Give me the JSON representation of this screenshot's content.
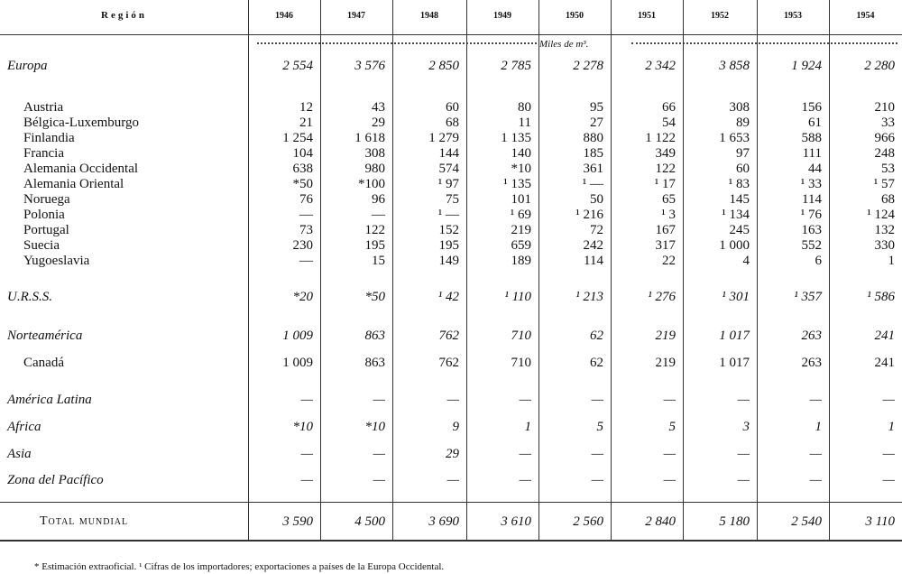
{
  "header": {
    "region": "Región",
    "years": [
      "1946",
      "1947",
      "1948",
      "1949",
      "1950",
      "1951",
      "1952",
      "1953",
      "1954"
    ]
  },
  "unit": "Miles de m³.",
  "rows": [
    {
      "label": "Europa",
      "values": [
        "2 554",
        "3 576",
        "2 850",
        "2 785",
        "2 278",
        "2 342",
        "3 858",
        "1 924",
        "2 280"
      ]
    },
    {
      "label": "Austria",
      "values": [
        "12",
        "43",
        "60",
        "80",
        "95",
        "66",
        "308",
        "156",
        "210"
      ]
    },
    {
      "label": "Bélgica-Luxemburgo",
      "values": [
        "21",
        "29",
        "68",
        "11",
        "27",
        "54",
        "89",
        "61",
        "33"
      ]
    },
    {
      "label": "Finlandia",
      "values": [
        "1 254",
        "1 618",
        "1 279",
        "1 135",
        "880",
        "1 122",
        "1 653",
        "588",
        "966"
      ]
    },
    {
      "label": "Francia",
      "values": [
        "104",
        "308",
        "144",
        "140",
        "185",
        "349",
        "97",
        "111",
        "248"
      ]
    },
    {
      "label": "Alemania Occidental",
      "values": [
        "638",
        "980",
        "574",
        "*10",
        "361",
        "122",
        "60",
        "44",
        "53"
      ]
    },
    {
      "label": "Alemania Oriental",
      "values": [
        "*50",
        "*100",
        "¹ 97",
        "¹ 135",
        "¹ —",
        "¹ 17",
        "¹ 83",
        "¹ 33",
        "¹ 57"
      ]
    },
    {
      "label": "Noruega",
      "values": [
        "76",
        "96",
        "75",
        "101",
        "50",
        "65",
        "145",
        "114",
        "68"
      ]
    },
    {
      "label": "Polonia",
      "values": [
        "—",
        "—",
        "¹ —",
        "¹ 69",
        "¹ 216",
        "¹ 3",
        "¹ 134",
        "¹ 76",
        "¹ 124"
      ]
    },
    {
      "label": "Portugal",
      "values": [
        "73",
        "122",
        "152",
        "219",
        "72",
        "167",
        "245",
        "163",
        "132"
      ]
    },
    {
      "label": "Suecia",
      "values": [
        "230",
        "195",
        "195",
        "659",
        "242",
        "317",
        "1 000",
        "552",
        "330"
      ]
    },
    {
      "label": "Yugoeslavia",
      "values": [
        "—",
        "15",
        "149",
        "189",
        "114",
        "22",
        "4",
        "6",
        "1"
      ]
    },
    {
      "label": "U.R.S.S.",
      "values": [
        "*20",
        "*50",
        "¹ 42",
        "¹ 110",
        "¹ 213",
        "¹ 276",
        "¹ 301",
        "¹ 357",
        "¹ 586"
      ]
    },
    {
      "label": "Norteamérica",
      "values": [
        "1 009",
        "863",
        "762",
        "710",
        "62",
        "219",
        "1 017",
        "263",
        "241"
      ]
    },
    {
      "label": "Canadá",
      "values": [
        "1 009",
        "863",
        "762",
        "710",
        "62",
        "219",
        "1 017",
        "263",
        "241"
      ]
    },
    {
      "label": "América Latina",
      "values": [
        "—",
        "—",
        "—",
        "—",
        "—",
        "—",
        "—",
        "—",
        "—"
      ]
    },
    {
      "label": "Africa",
      "values": [
        "*10",
        "*10",
        "9",
        "1",
        "5",
        "5",
        "3",
        "1",
        "1"
      ]
    },
    {
      "label": "Asia",
      "values": [
        "—",
        "—",
        "29",
        "—",
        "—",
        "—",
        "—",
        "—",
        "—"
      ]
    },
    {
      "label": "Zona del Pacífico",
      "values": [
        "—",
        "—",
        "—",
        "—",
        "—",
        "—",
        "—",
        "—",
        "—"
      ]
    }
  ],
  "total": {
    "label": "Total mundial",
    "values": [
      "3 590",
      "4 500",
      "3 690",
      "3 610",
      "2 560",
      "2 840",
      "5 180",
      "2 540",
      "3 110"
    ]
  },
  "footnote": "* Estimación extraoficial.  ¹ Cifras de los importadores; exportaciones a países de la Europa Occidental."
}
